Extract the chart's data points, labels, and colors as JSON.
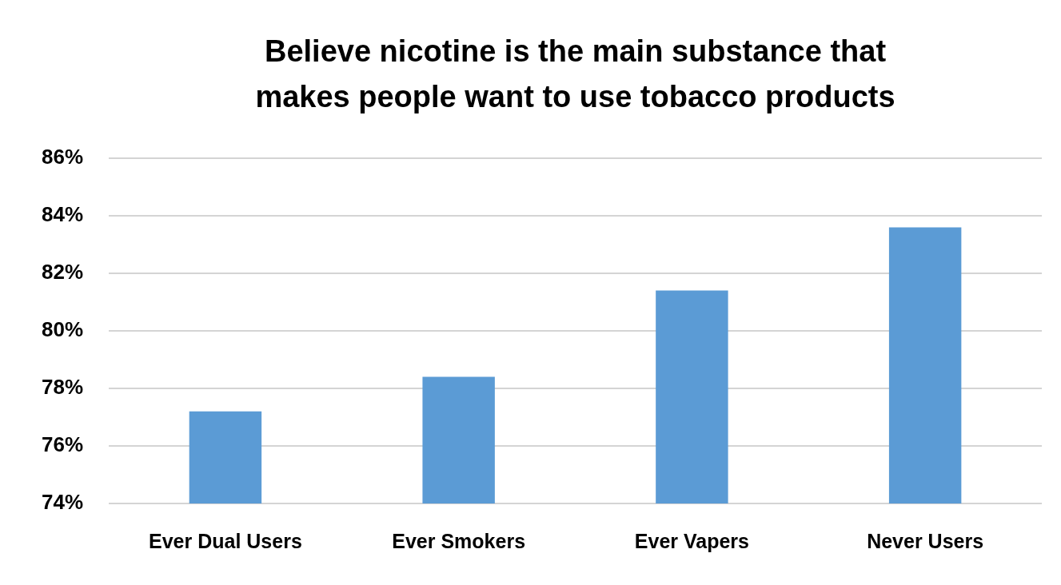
{
  "chart_data": {
    "type": "bar",
    "title": "Believe nicotine is the main substance that\nmakes people want to use tobacco products",
    "categories": [
      "Ever Dual Users",
      "Ever Smokers",
      "Ever Vapers",
      "Never Users"
    ],
    "values": [
      77.2,
      78.4,
      81.4,
      83.6
    ],
    "color": "#5b9bd5",
    "ylim": [
      74,
      86
    ],
    "yticks": [
      {
        "value": 74,
        "label": "74%"
      },
      {
        "value": 76,
        "label": "76%"
      },
      {
        "value": 78,
        "label": "78%"
      },
      {
        "value": 80,
        "label": "80%"
      },
      {
        "value": 82,
        "label": "82%"
      },
      {
        "value": 84,
        "label": "84%"
      },
      {
        "value": 86,
        "label": "86%"
      }
    ],
    "grid": "y"
  }
}
